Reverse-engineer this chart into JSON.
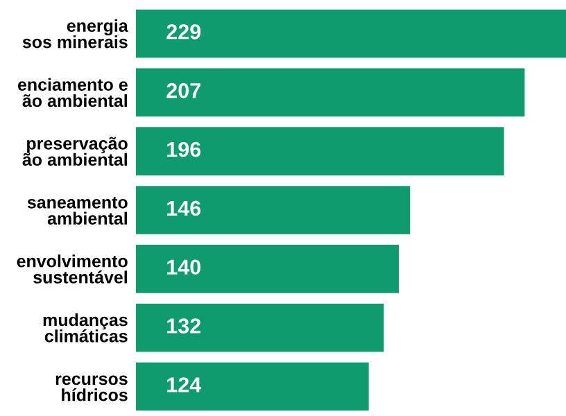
{
  "chart_data": {
    "type": "bar",
    "orientation": "horizontal",
    "categories": [
      "energia\nsos minerais",
      "enciamento e\não ambiental",
      "preservação\não ambiental",
      "saneamento\nambiental",
      "envolvimento\nsustentável",
      "mudanças\nclimáticas",
      "recursos\nhídricos"
    ],
    "values": [
      229,
      207,
      196,
      146,
      140,
      132,
      124
    ],
    "color": "#0f9b6e",
    "data_labels": true,
    "grid": false,
    "legend": false
  }
}
